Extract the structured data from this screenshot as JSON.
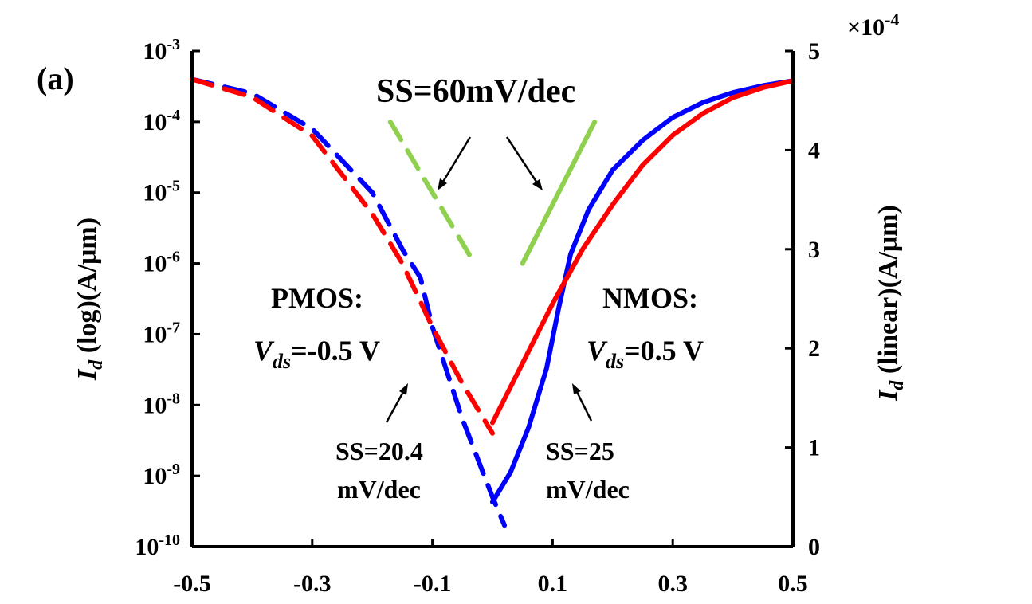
{
  "panel_label": "(a)",
  "chart_data": {
    "type": "line",
    "xlim": [
      -0.5,
      0.5
    ],
    "x_ticks": [
      "-0.5",
      "-0.3",
      "-0.1",
      "0.1",
      "0.3",
      "0.5"
    ],
    "x_tick_values": [
      -0.5,
      -0.3,
      -0.1,
      0.1,
      0.3,
      0.5
    ],
    "y_left": {
      "label_main": "I",
      "label_sub": "d",
      "label_rest": " (log)(A/μm)",
      "scale": "log",
      "exp_range": [
        -10,
        -3
      ],
      "ticks": [
        {
          "base": "10",
          "exp": "-3"
        },
        {
          "base": "10",
          "exp": "-4"
        },
        {
          "base": "10",
          "exp": "-5"
        },
        {
          "base": "10",
          "exp": "-6"
        },
        {
          "base": "10",
          "exp": "-7"
        },
        {
          "base": "10",
          "exp": "-8"
        },
        {
          "base": "10",
          "exp": "-9"
        },
        {
          "base": "10",
          "exp": "-10"
        }
      ]
    },
    "y_right": {
      "label_main": "I",
      "label_sub": "d",
      "label_rest": " (linear)(A/μm)",
      "scale": "linear",
      "ylim": [
        0,
        5
      ],
      "multiplier_prefix": "×10",
      "multiplier_exp": "-4",
      "ticks": [
        "0",
        "1",
        "2",
        "3",
        "4",
        "5"
      ]
    },
    "series": [
      {
        "device": "PMOS",
        "scale": "log",
        "color": "#0000ff",
        "dash": true,
        "x": [
          -0.5,
          -0.4,
          -0.3,
          -0.2,
          -0.15,
          -0.12,
          -0.1,
          -0.05,
          0.0,
          0.02
        ],
        "log10_y": [
          -3.4,
          -3.6,
          -4.1,
          -5.0,
          -5.8,
          -6.2,
          -6.9,
          -8.2,
          -9.3,
          -9.7
        ]
      },
      {
        "device": "PMOS",
        "scale": "log",
        "color": "#ff0000",
        "dash": true,
        "x": [
          -0.5,
          -0.4,
          -0.3,
          -0.2,
          -0.15,
          -0.1,
          -0.05,
          0.0
        ],
        "log10_y": [
          -3.4,
          -3.65,
          -4.2,
          -5.3,
          -6.0,
          -6.9,
          -7.7,
          -8.4
        ]
      },
      {
        "device": "NMOS",
        "scale": "linear",
        "color": "#0000ff",
        "dash": false,
        "x": [
          0.0,
          0.03,
          0.06,
          0.09,
          0.11,
          0.13,
          0.16,
          0.2,
          0.25,
          0.3,
          0.35,
          0.4,
          0.45,
          0.5
        ],
        "y_e4": [
          0.45,
          0.75,
          1.2,
          1.8,
          2.4,
          2.95,
          3.4,
          3.8,
          4.1,
          4.33,
          4.48,
          4.58,
          4.65,
          4.7
        ]
      },
      {
        "device": "NMOS",
        "scale": "linear",
        "color": "#ff0000",
        "dash": false,
        "x": [
          0.0,
          0.05,
          0.1,
          0.15,
          0.2,
          0.25,
          0.3,
          0.35,
          0.4,
          0.45,
          0.5
        ],
        "y_e4": [
          1.25,
          1.85,
          2.45,
          3.0,
          3.45,
          3.85,
          4.15,
          4.37,
          4.53,
          4.63,
          4.7
        ]
      },
      {
        "device": "reference",
        "scale": "log",
        "color": "#8fd14f",
        "dash": true,
        "x": [
          -0.17,
          -0.03
        ],
        "log10_y": [
          -4.0,
          -6.0
        ]
      },
      {
        "device": "reference",
        "scale": "log",
        "color": "#8fd14f",
        "dash": false,
        "x": [
          0.05,
          0.17
        ],
        "log10_y": [
          -6.0,
          -4.0
        ]
      }
    ],
    "annotations": {
      "ss60": "SS=60mV/dec",
      "pmos_title": "PMOS:",
      "pmos_vds_main": "V",
      "pmos_vds_sub": "ds",
      "pmos_vds_value": "=-0.5 V",
      "nmos_title": "NMOS:",
      "nmos_vds_main": "V",
      "nmos_vds_sub": "ds",
      "nmos_vds_value": "=0.5 V",
      "pmos_ss_line1": "SS=20.4",
      "pmos_ss_line2": "mV/dec",
      "nmos_ss_line1": "SS=25",
      "nmos_ss_line2": "mV/dec"
    }
  }
}
